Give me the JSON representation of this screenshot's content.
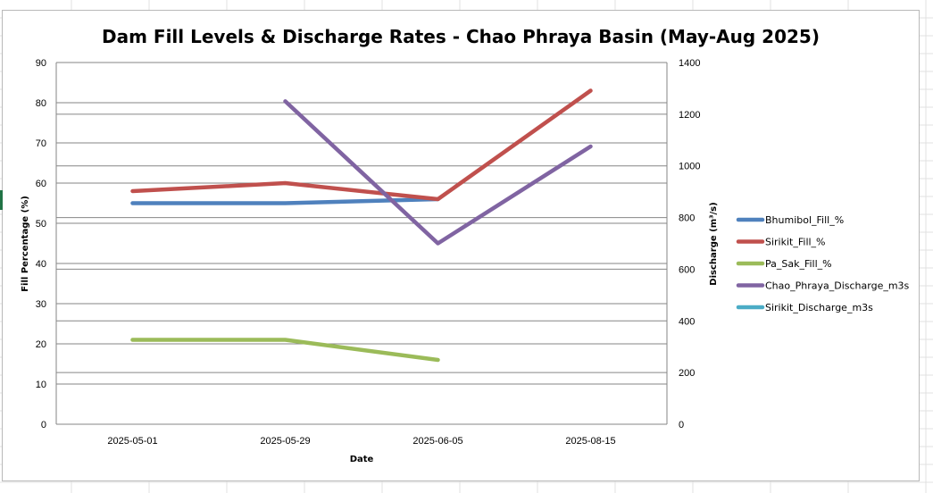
{
  "chart_data": {
    "type": "line",
    "title": "Dam Fill Levels & Discharge Rates - Chao Phraya Basin (May-Aug 2025)",
    "xlabel": "Date",
    "ylabel": "Fill Percentage (%)",
    "y2label": "Discharge (m³/s)",
    "categories": [
      "2025-05-01",
      "2025-05-29",
      "2025-06-05",
      "2025-08-15"
    ],
    "ylim": [
      0,
      90
    ],
    "y2lim": [
      0,
      1400
    ],
    "yticks": [
      0,
      10,
      20,
      30,
      40,
      50,
      60,
      70,
      80,
      90
    ],
    "y2ticks": [
      0,
      200,
      400,
      600,
      800,
      1000,
      1200,
      1400
    ],
    "grid": true,
    "legend_position": "right",
    "series": [
      {
        "name": "Bhumibol_Fill_%",
        "axis": "left",
        "color": "#4f81bd",
        "values": [
          55,
          55,
          56,
          null
        ]
      },
      {
        "name": "Sirikit_Fill_%",
        "axis": "left",
        "color": "#c0504d",
        "values": [
          58,
          60,
          56,
          83
        ]
      },
      {
        "name": "Pa_Sak_Fill_%",
        "axis": "left",
        "color": "#9bbb59",
        "values": [
          21,
          21,
          16,
          null
        ]
      },
      {
        "name": "Chao_Phraya_Discharge_m3s",
        "axis": "right",
        "color": "#8064a2",
        "values": [
          null,
          1250,
          700,
          1075
        ]
      },
      {
        "name": "Sirikit_Discharge_m3s",
        "axis": "right",
        "color": "#4bacc6",
        "values": [
          null,
          null,
          null,
          null
        ]
      }
    ]
  }
}
